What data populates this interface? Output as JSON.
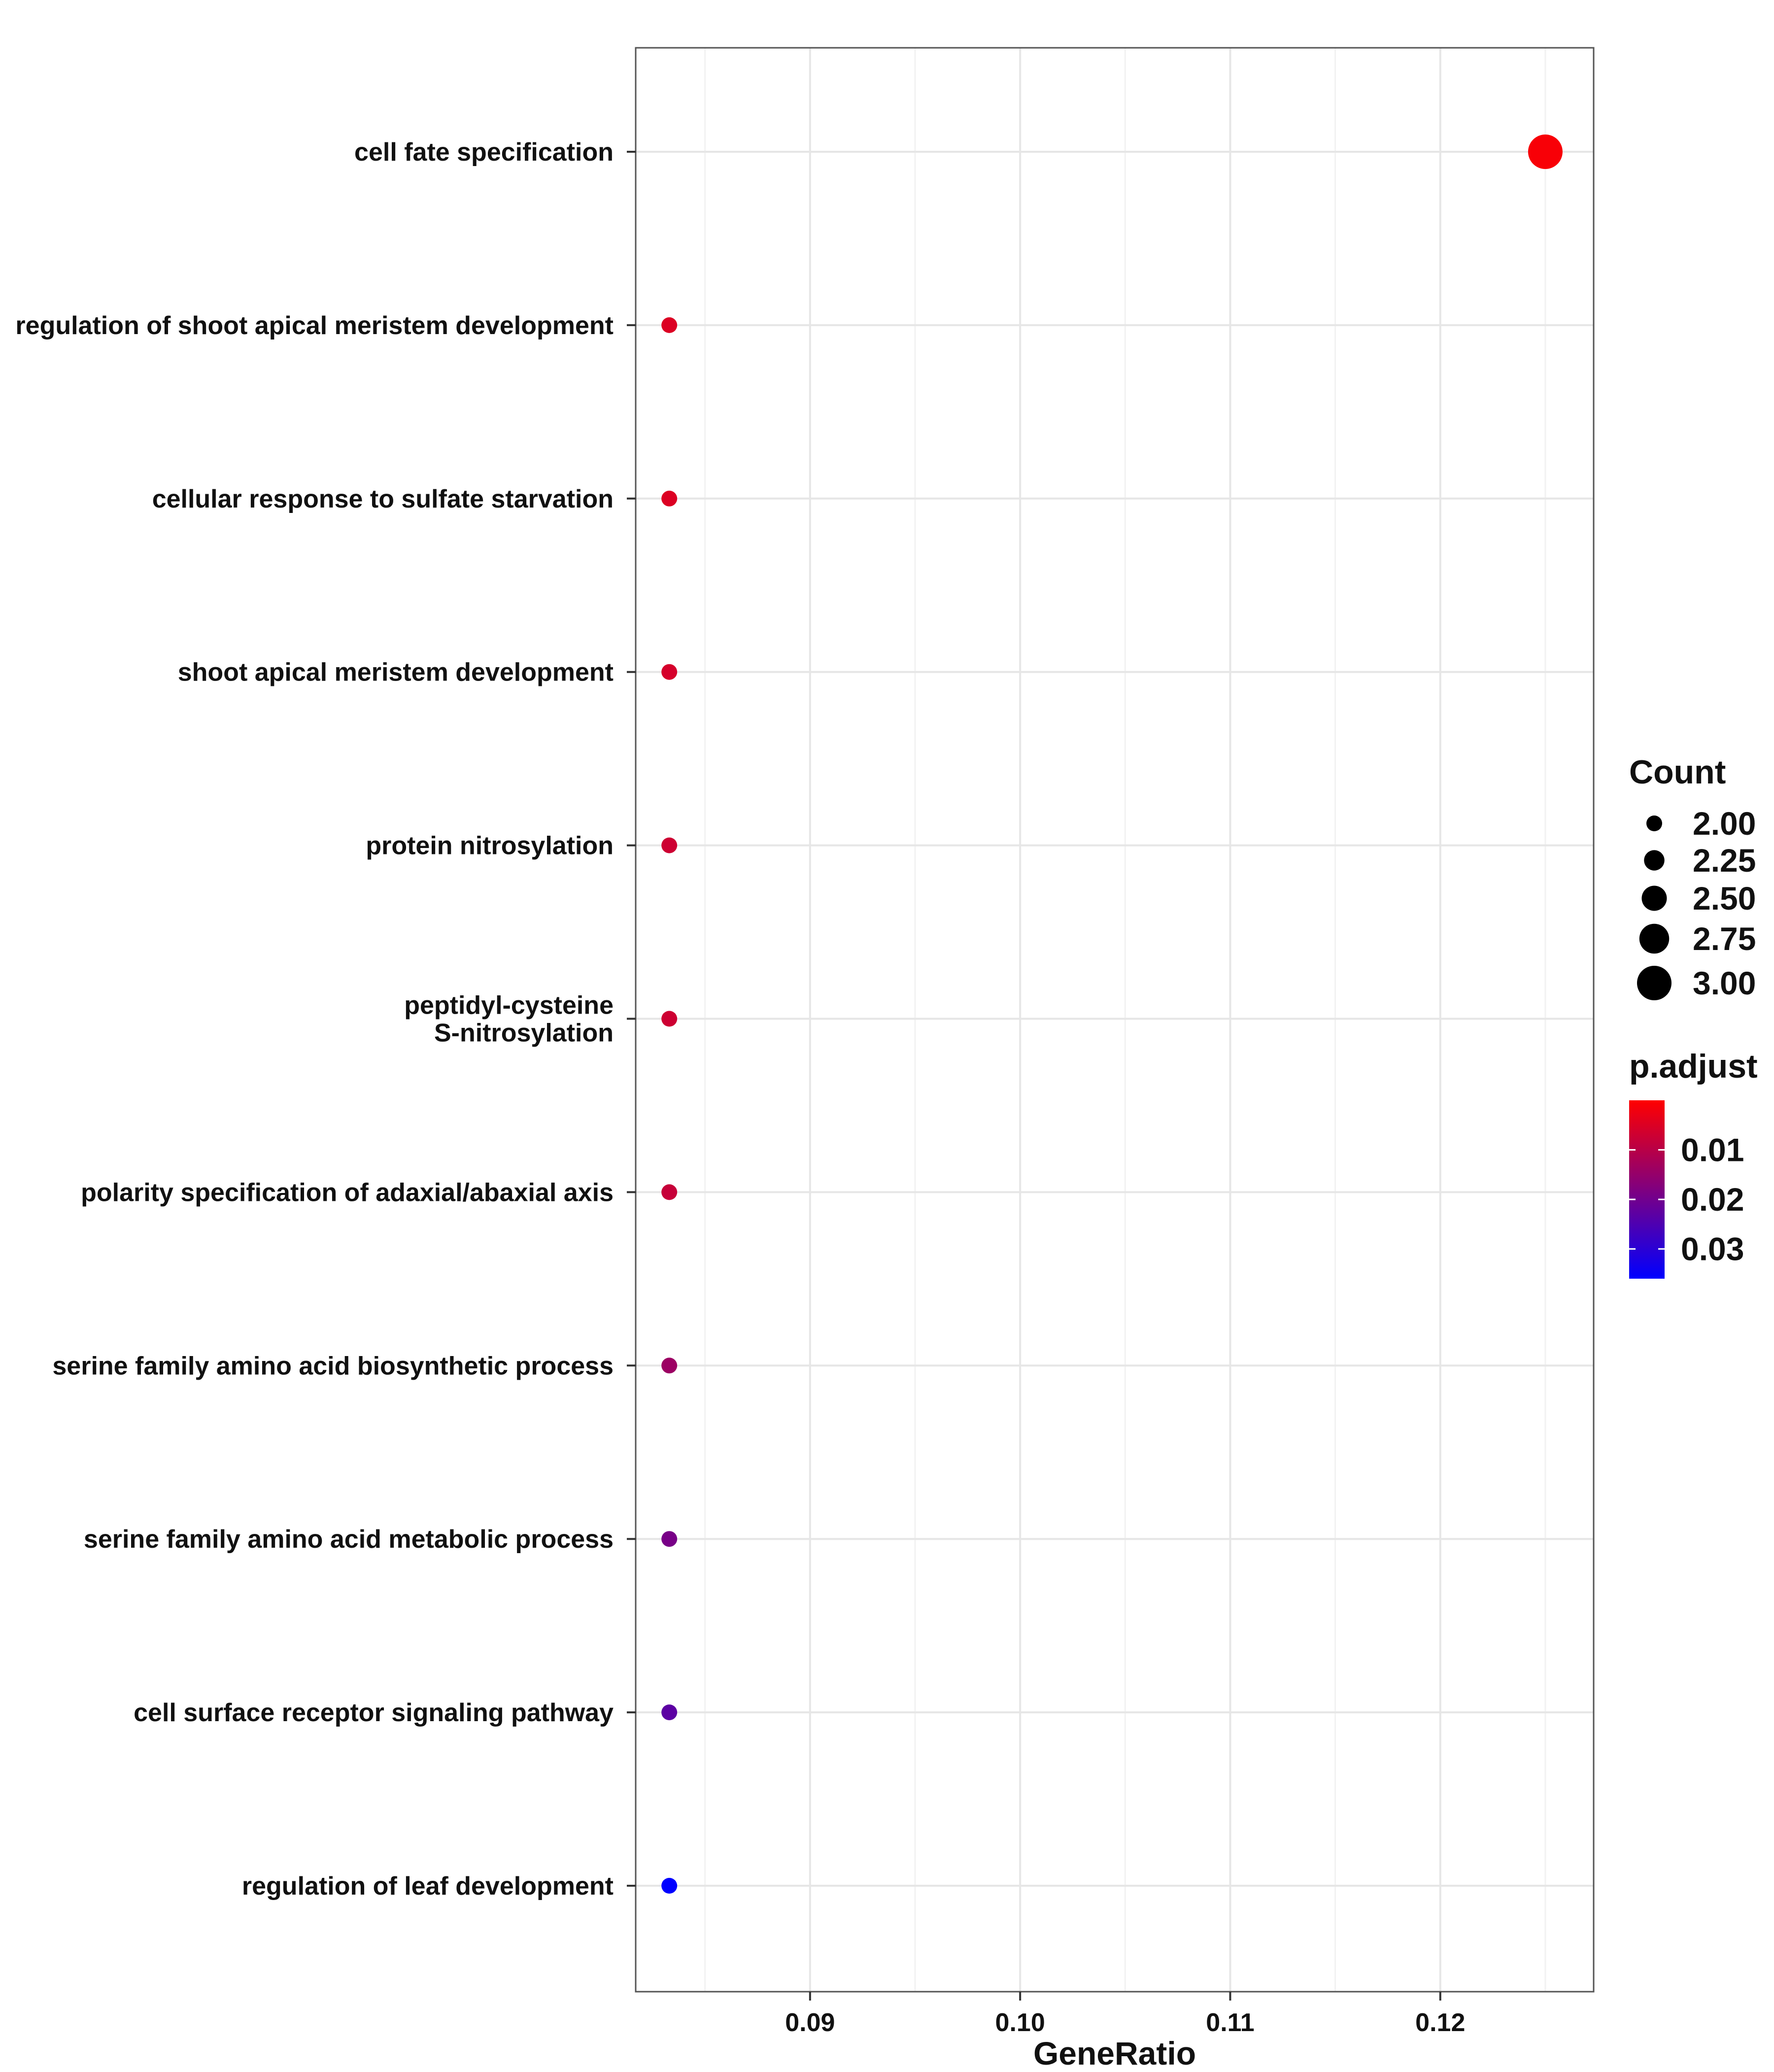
{
  "chart_data": {
    "type": "scatter",
    "xlabel": "GeneRatio",
    "ylabel": "",
    "title": "",
    "xlim": [
      0.0817,
      0.1273
    ],
    "x_ticks": [
      0.09,
      0.1,
      0.11,
      0.12
    ],
    "x_tick_labels": [
      "0.09",
      "0.10",
      "0.11",
      "0.12"
    ],
    "grid": true,
    "legend_position": "right",
    "categories": [
      "cell fate specification",
      "regulation of shoot apical meristem development",
      "cellular response to sulfate starvation",
      "shoot apical meristem development",
      "protein nitrosylation",
      "peptidyl-cysteine\nS-nitrosylation",
      "polarity specification of adaxial/abaxial axis",
      "serine family amino acid biosynthetic process",
      "serine family amino acid metabolic process",
      "cell surface receptor signaling pathway",
      "regulation of leaf development"
    ],
    "points": [
      {
        "term": "cell fate specification",
        "gene_ratio": 0.125,
        "count": 3,
        "p_adjust": 0.001
      },
      {
        "term": "regulation of shoot apical meristem development",
        "gene_ratio": 0.0833,
        "count": 2,
        "p_adjust": 0.005
      },
      {
        "term": "cellular response to sulfate starvation",
        "gene_ratio": 0.0833,
        "count": 2,
        "p_adjust": 0.005
      },
      {
        "term": "shoot apical meristem development",
        "gene_ratio": 0.0833,
        "count": 2,
        "p_adjust": 0.006
      },
      {
        "term": "protein nitrosylation",
        "gene_ratio": 0.0833,
        "count": 2,
        "p_adjust": 0.007
      },
      {
        "term": "peptidyl-cysteine\nS-nitrosylation",
        "gene_ratio": 0.0833,
        "count": 2,
        "p_adjust": 0.007
      },
      {
        "term": "polarity specification of adaxial/abaxial axis",
        "gene_ratio": 0.0833,
        "count": 2,
        "p_adjust": 0.008
      },
      {
        "term": "serine family amino acid biosynthetic process",
        "gene_ratio": 0.0833,
        "count": 2,
        "p_adjust": 0.014
      },
      {
        "term": "serine family amino acid metabolic process",
        "gene_ratio": 0.0833,
        "count": 2,
        "p_adjust": 0.019
      },
      {
        "term": "cell surface receptor signaling pathway",
        "gene_ratio": 0.0833,
        "count": 2,
        "p_adjust": 0.023
      },
      {
        "term": "regulation of leaf development",
        "gene_ratio": 0.0833,
        "count": 2,
        "p_adjust": 0.036
      }
    ],
    "size_legend": {
      "title": "Count",
      "values": [
        2.0,
        2.25,
        2.5,
        2.75,
        3.0
      ],
      "labels": [
        "2.00",
        "2.25",
        "2.50",
        "2.75",
        "3.00"
      ]
    },
    "color_legend": {
      "title": "p.adjust",
      "range": [
        0.0,
        0.036
      ],
      "ticks": [
        0.01,
        0.02,
        0.03
      ],
      "labels": [
        "0.01",
        "0.02",
        "0.03"
      ],
      "low_color": "#ff0000",
      "high_color": "#0000ff"
    }
  }
}
